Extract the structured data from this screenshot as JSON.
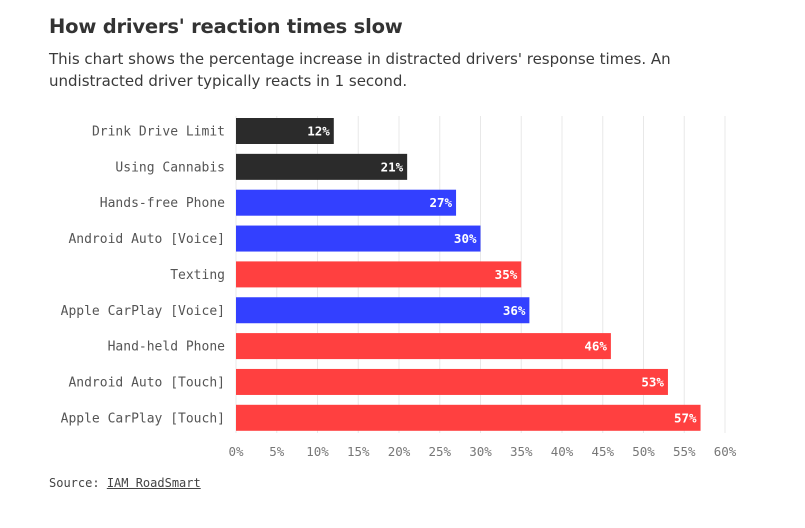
{
  "title": "How drivers' reaction times slow",
  "subtitle": "This chart shows the percentage increase in distracted drivers' response times. An undistracted driver typically reacts in 1 second.",
  "source": {
    "prefix": "Source:",
    "link_text": "IAM RoadSmart"
  },
  "colors": {
    "black": "#2b2b2b",
    "blue": "#3340ff",
    "red": "#ff4040",
    "grid": "#e8e8e8"
  },
  "chart_data": {
    "type": "bar",
    "orientation": "horizontal",
    "categories": [
      "Drink Drive Limit",
      "Using Cannabis",
      "Hands-free Phone",
      "Android Auto [Voice]",
      "Texting",
      "Apple CarPlay [Voice]",
      "Hand-held Phone",
      "Android Auto [Touch]",
      "Apple CarPlay [Touch]"
    ],
    "values": [
      12,
      21,
      27,
      30,
      35,
      36,
      46,
      53,
      57
    ],
    "value_labels": [
      "12%",
      "21%",
      "27%",
      "30%",
      "35%",
      "36%",
      "46%",
      "53%",
      "57%"
    ],
    "bar_colors": [
      "black",
      "black",
      "blue",
      "blue",
      "red",
      "blue",
      "red",
      "red",
      "red"
    ],
    "xlim": [
      0,
      60
    ],
    "xticks": [
      "0%",
      "5%",
      "10%",
      "15%",
      "20%",
      "25%",
      "30%",
      "35%",
      "40%",
      "45%",
      "50%",
      "55%",
      "60%"
    ],
    "grid": true
  }
}
